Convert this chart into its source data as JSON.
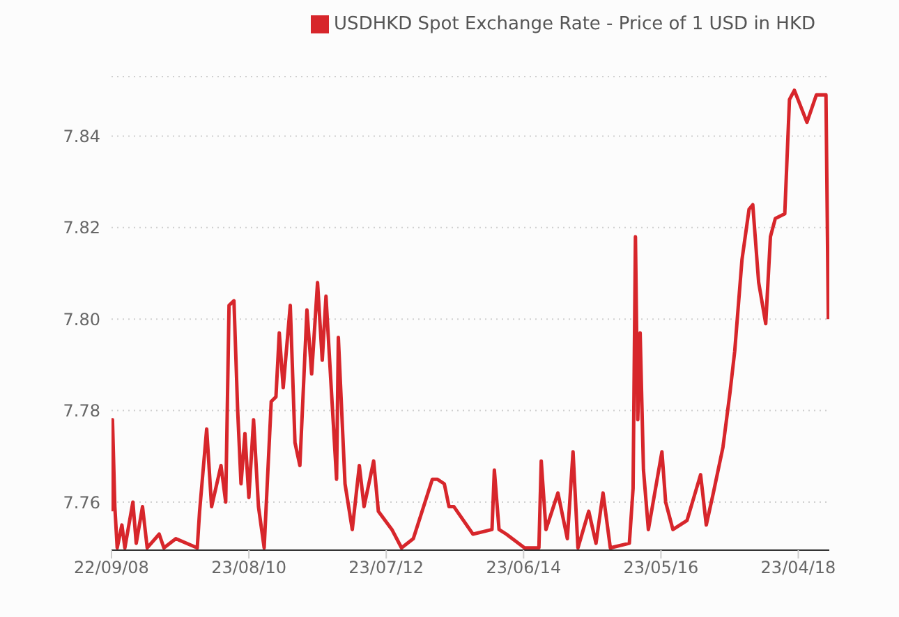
{
  "chart_data": {
    "type": "line",
    "xlim": [
      "2008-09-22",
      "2018-09-28"
    ],
    "ylim": [
      7.7495,
      7.853
    ],
    "xticks": [
      {
        "value": "2008-09-22",
        "label": "22/09/08"
      },
      {
        "value": "2010-08-23",
        "label": "23/08/10"
      },
      {
        "value": "2012-07-23",
        "label": "23/07/12"
      },
      {
        "value": "2014-06-23",
        "label": "23/06/14"
      },
      {
        "value": "2016-05-23",
        "label": "23/05/16"
      },
      {
        "value": "2018-04-23",
        "label": "23/04/18"
      }
    ],
    "yticks": [
      {
        "value": 7.76,
        "label": "7.76"
      },
      {
        "value": 7.78,
        "label": "7.78"
      },
      {
        "value": 7.8,
        "label": "7.80"
      },
      {
        "value": 7.82,
        "label": "7.82"
      },
      {
        "value": 7.84,
        "label": "7.84"
      }
    ],
    "grid": "y",
    "legend": "top right",
    "series": [
      {
        "name": "USDHKD Spot Exchange Rate - Price of 1 USD in HKD",
        "color": "#d7262b",
        "x": [
          "2008-09-22",
          "2008-09-27",
          "2008-10-09",
          "2008-10-21",
          "2008-11-14",
          "2008-11-29",
          "2009-01-09",
          "2009-01-26",
          "2009-02-27",
          "2009-03-23",
          "2009-05-23",
          "2009-06-16",
          "2009-08-16",
          "2009-12-03",
          "2009-12-15",
          "2010-01-20",
          "2010-02-14",
          "2010-04-03",
          "2010-04-27",
          "2010-05-14",
          "2010-06-08",
          "2010-06-27",
          "2010-07-14",
          "2010-08-03",
          "2010-08-23",
          "2010-09-16",
          "2010-10-11",
          "2010-11-09",
          "2010-12-15",
          "2011-01-08",
          "2011-01-25",
          "2011-02-14",
          "2011-03-22",
          "2011-04-15",
          "2011-05-10",
          "2011-06-15",
          "2011-07-09",
          "2011-08-08",
          "2011-09-01",
          "2011-09-20",
          "2011-10-14",
          "2011-11-13",
          "2011-11-22",
          "2011-12-26",
          "2012-02-01",
          "2012-03-08",
          "2012-04-01",
          "2012-05-20",
          "2012-06-13",
          "2012-08-21",
          "2012-10-09",
          "2012-12-08",
          "2013-03-15",
          "2013-04-09",
          "2013-05-15",
          "2013-06-08",
          "2013-07-03",
          "2013-10-08",
          "2014-01-13",
          "2014-01-25",
          "2014-02-18",
          "2014-03-27",
          "2014-06-28",
          "2014-09-09",
          "2014-09-21",
          "2014-10-15",
          "2014-12-15",
          "2015-02-01",
          "2015-03-02",
          "2015-03-27",
          "2015-05-21",
          "2015-06-27",
          "2015-08-02",
          "2015-09-08",
          "2015-12-14",
          "2016-01-02",
          "2016-01-14",
          "2016-01-26",
          "2016-02-07",
          "2016-02-24",
          "2016-03-20",
          "2016-05-28",
          "2016-06-16",
          "2016-07-23",
          "2016-10-03",
          "2016-12-11",
          "2017-01-09",
          "2017-02-14",
          "2017-04-04",
          "2017-05-10",
          "2017-06-03",
          "2017-07-10",
          "2017-08-15",
          "2017-09-03",
          "2017-10-03",
          "2017-11-08",
          "2017-12-02",
          "2017-12-27",
          "2018-02-13",
          "2018-03-09",
          "2018-04-03",
          "2018-06-06",
          "2018-07-24",
          "2018-09-11",
          "2018-09-23"
        ],
        "values": [
          7.758,
          7.778,
          7.759,
          7.75,
          7.755,
          7.75,
          7.76,
          7.751,
          7.759,
          7.75,
          7.753,
          7.75,
          7.752,
          7.75,
          7.758,
          7.776,
          7.759,
          7.768,
          7.76,
          7.803,
          7.804,
          7.78,
          7.764,
          7.775,
          7.761,
          7.778,
          7.759,
          7.75,
          7.782,
          7.783,
          7.797,
          7.785,
          7.803,
          7.773,
          7.768,
          7.802,
          7.788,
          7.808,
          7.791,
          7.805,
          7.787,
          7.765,
          7.796,
          7.764,
          7.754,
          7.768,
          7.759,
          7.769,
          7.758,
          7.754,
          7.75,
          7.752,
          7.765,
          7.765,
          7.764,
          7.759,
          7.759,
          7.753,
          7.754,
          7.767,
          7.754,
          7.753,
          7.75,
          7.75,
          7.769,
          7.754,
          7.762,
          7.752,
          7.771,
          7.75,
          7.758,
          7.751,
          7.762,
          7.75,
          7.751,
          7.763,
          7.818,
          7.778,
          7.797,
          7.767,
          7.754,
          7.771,
          7.76,
          7.754,
          7.756,
          7.766,
          7.755,
          7.762,
          7.772,
          7.784,
          7.793,
          7.813,
          7.824,
          7.825,
          7.808,
          7.799,
          7.818,
          7.822,
          7.823,
          7.848,
          7.85,
          7.843,
          7.849,
          7.849,
          7.8
        ]
      }
    ]
  }
}
